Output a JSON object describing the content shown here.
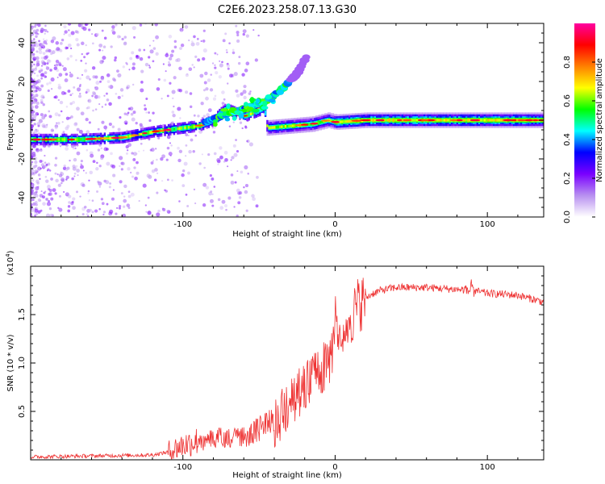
{
  "title": "C2E6.2023.258.07.13.G30",
  "chart_data": [
    {
      "type": "heatmap",
      "name": "spectrogram",
      "xlabel": "Height of straight line (km)",
      "ylabel": "Frequency (Hz)",
      "xlim": [
        -200,
        137
      ],
      "ylim": [
        -50,
        50
      ],
      "xticks": [
        -100,
        0,
        100
      ],
      "xtick_labels": [
        "-100",
        "0",
        "100"
      ],
      "yticks": [
        -40,
        -20,
        0,
        20,
        40
      ],
      "ytick_labels": [
        "-40",
        "-20",
        "0",
        "20",
        "40"
      ],
      "track": {
        "x": [
          -200,
          -170,
          -140,
          -120,
          -100,
          -90,
          -80,
          -75,
          -72,
          -60,
          -50,
          -47,
          -45,
          -30,
          -15,
          -5,
          0,
          20,
          60,
          100,
          137
        ],
        "y": [
          -10,
          -10,
          -9,
          -6,
          -4,
          -3,
          0,
          4,
          6,
          2,
          5,
          7,
          -4,
          -3,
          -2,
          0,
          -1,
          0,
          0,
          0,
          0
        ]
      },
      "dispersive_branch": {
        "x": [
          -85,
          -75,
          -60,
          -45,
          -35,
          -25,
          -18
        ],
        "y": [
          -1,
          2,
          6,
          10,
          16,
          24,
          34
        ]
      },
      "colorbar": {
        "label": "Normalized spectral amplitude",
        "range": [
          0,
          1
        ],
        "ticks": [
          0,
          0.2,
          0.4,
          0.6,
          0.8
        ],
        "tick_labels": [
          "0.0",
          "0.2",
          "0.4",
          "0.6",
          "0.8"
        ],
        "colors": [
          "#ffffff",
          "#b890f0",
          "#7a00ff",
          "#0000ff",
          "#00ffff",
          "#00ff00",
          "#ffff00",
          "#ff8000",
          "#ff0000",
          "#ff00a0"
        ]
      }
    },
    {
      "type": "line",
      "name": "snr",
      "xlabel": "Height of straight line (km)",
      "ylabel": "SNR (10 * v/v)",
      "multiplier": "(x10",
      "multiplier_exp": "4",
      "multiplier_close": ")",
      "xlim": [
        -200,
        137
      ],
      "ylim": [
        0,
        2.0
      ],
      "xticks": [
        -100,
        0,
        100
      ],
      "xtick_labels": [
        "-100",
        "0",
        "100"
      ],
      "yticks": [
        0.5,
        1.0,
        1.5
      ],
      "ytick_labels": [
        "0.5",
        "1.0",
        "1.5"
      ],
      "color": "#ee3333",
      "envelope": {
        "x": [
          -200,
          -160,
          -120,
          -110,
          -100,
          -90,
          -80,
          -70,
          -60,
          -50,
          -40,
          -35,
          -30,
          -25,
          -20,
          -15,
          -10,
          -5,
          -2,
          0,
          2,
          5,
          10,
          15,
          20,
          25,
          30,
          40,
          60,
          80,
          90,
          100,
          120,
          137
        ],
        "y": [
          0.03,
          0.04,
          0.05,
          0.08,
          0.15,
          0.2,
          0.28,
          0.28,
          0.3,
          0.38,
          0.5,
          0.62,
          0.72,
          0.8,
          0.88,
          0.95,
          1.05,
          1.15,
          1.2,
          1.7,
          1.3,
          1.35,
          1.45,
          1.6,
          1.67,
          1.72,
          1.75,
          1.78,
          1.78,
          1.76,
          1.75,
          1.72,
          1.7,
          1.63
        ]
      }
    }
  ]
}
